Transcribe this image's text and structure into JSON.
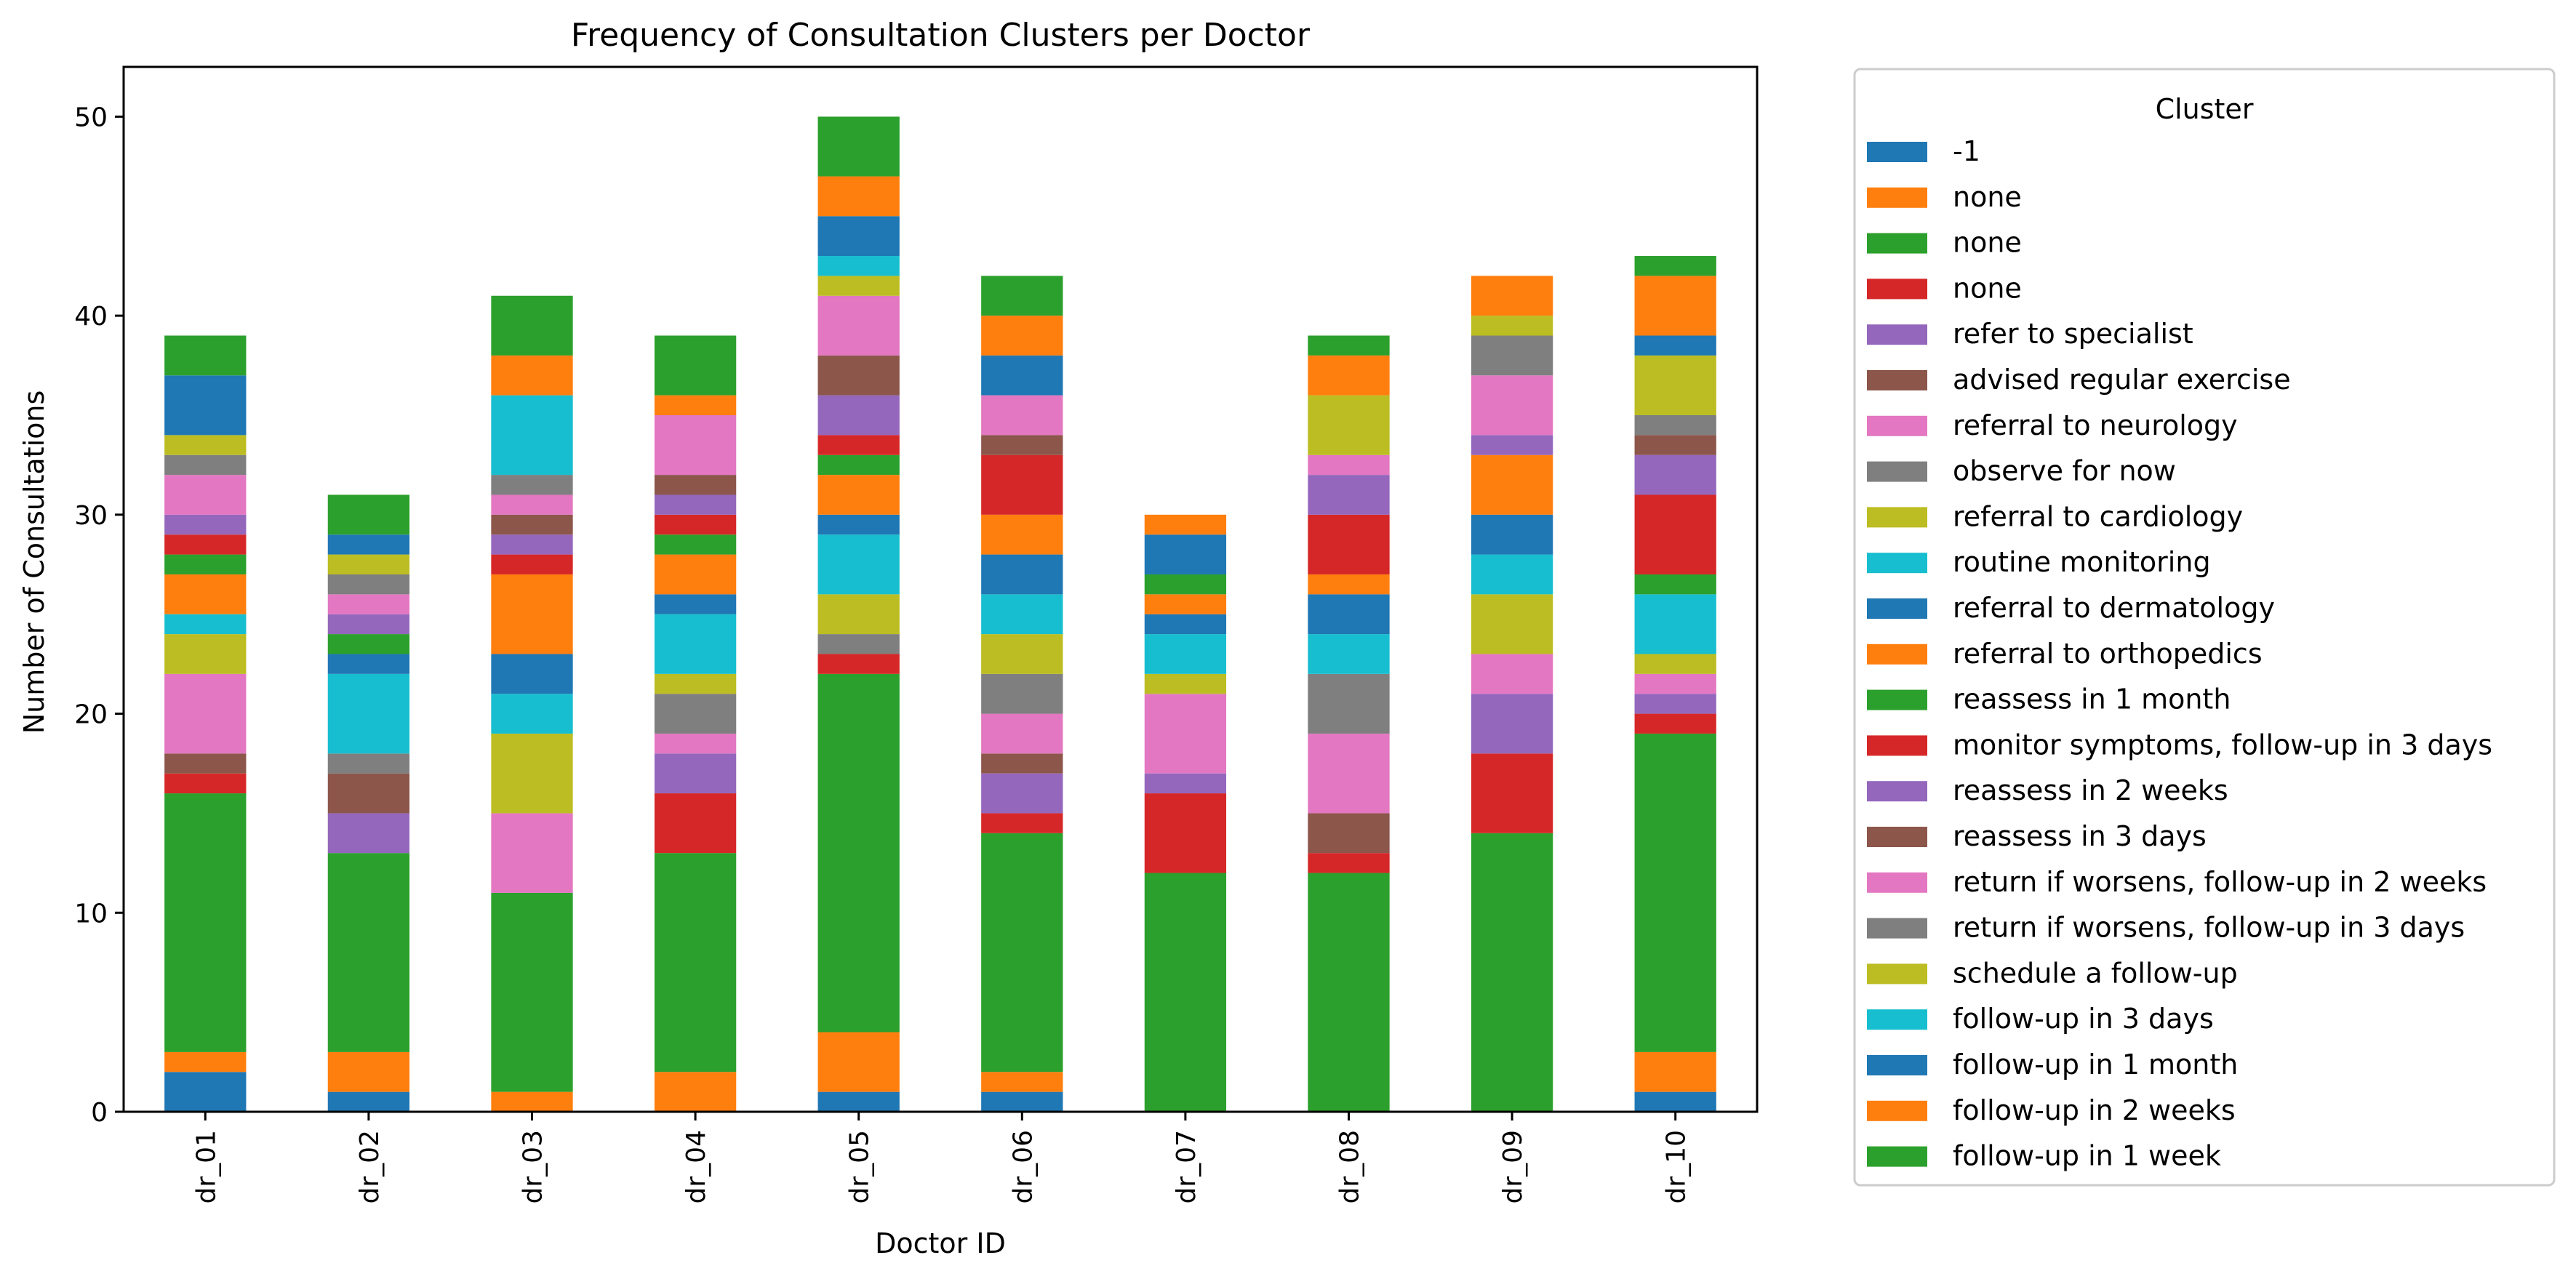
{
  "chart_data": {
    "type": "bar",
    "stacked": true,
    "title": "Frequency of Consultation Clusters per Doctor",
    "xlabel": "Doctor ID",
    "ylabel": "Number of Consultations",
    "ylim": [
      0,
      52.5
    ],
    "yticks": [
      0,
      10,
      20,
      30,
      40,
      50
    ],
    "grid": false,
    "legend_title": "Cluster",
    "legend_position": "outside-right",
    "categories": [
      "dr_01",
      "dr_02",
      "dr_03",
      "dr_04",
      "dr_05",
      "dr_06",
      "dr_07",
      "dr_08",
      "dr_09",
      "dr_10"
    ],
    "series": [
      {
        "name": "-1",
        "color": "#1f77b4",
        "values": [
          2,
          1,
          0,
          0,
          1,
          1,
          0,
          0,
          0,
          1
        ]
      },
      {
        "name": "none",
        "color": "#ff7f0e",
        "values": [
          1,
          2,
          1,
          2,
          3,
          1,
          0,
          0,
          0,
          2
        ]
      },
      {
        "name": "none",
        "color": "#2ca02c",
        "values": [
          13,
          10,
          10,
          11,
          18,
          12,
          12,
          12,
          14,
          16
        ]
      },
      {
        "name": "none",
        "color": "#d62728",
        "values": [
          1,
          0,
          0,
          3,
          1,
          1,
          4,
          1,
          4,
          1
        ]
      },
      {
        "name": "refer to specialist",
        "color": "#9467bd",
        "values": [
          0,
          2,
          0,
          2,
          0,
          2,
          1,
          0,
          3,
          1
        ]
      },
      {
        "name": "advised regular exercise",
        "color": "#8c564b",
        "values": [
          1,
          2,
          0,
          0,
          0,
          1,
          0,
          2,
          0,
          0
        ]
      },
      {
        "name": "referral to neurology",
        "color": "#e377c2",
        "values": [
          4,
          0,
          4,
          1,
          0,
          2,
          4,
          4,
          2,
          1
        ]
      },
      {
        "name": "observe for now",
        "color": "#7f7f7f",
        "values": [
          0,
          1,
          0,
          2,
          1,
          2,
          0,
          3,
          0,
          0
        ]
      },
      {
        "name": "referral to cardiology",
        "color": "#bcbd22",
        "values": [
          2,
          0,
          4,
          1,
          2,
          2,
          1,
          0,
          3,
          1
        ]
      },
      {
        "name": "routine monitoring",
        "color": "#17becf",
        "values": [
          1,
          4,
          2,
          3,
          3,
          2,
          2,
          2,
          2,
          3
        ]
      },
      {
        "name": "referral to dermatology",
        "color": "#1f77b4",
        "values": [
          0,
          1,
          2,
          1,
          1,
          2,
          1,
          2,
          2,
          0
        ]
      },
      {
        "name": "referral to orthopedics",
        "color": "#ff7f0e",
        "values": [
          2,
          0,
          4,
          2,
          2,
          2,
          1,
          1,
          3,
          0
        ]
      },
      {
        "name": "reassess in 1 month",
        "color": "#2ca02c",
        "values": [
          1,
          1,
          0,
          1,
          1,
          0,
          1,
          0,
          0,
          1
        ]
      },
      {
        "name": "monitor symptoms, follow-up in 3 days",
        "color": "#d62728",
        "values": [
          1,
          0,
          1,
          1,
          1,
          3,
          0,
          3,
          0,
          4
        ]
      },
      {
        "name": "reassess in 2 weeks",
        "color": "#9467bd",
        "values": [
          1,
          1,
          1,
          1,
          2,
          0,
          0,
          2,
          1,
          2
        ]
      },
      {
        "name": "reassess in 3 days",
        "color": "#8c564b",
        "values": [
          0,
          0,
          1,
          1,
          2,
          1,
          0,
          0,
          0,
          1
        ]
      },
      {
        "name": "return if worsens, follow-up in 2 weeks",
        "color": "#e377c2",
        "values": [
          2,
          1,
          1,
          3,
          3,
          2,
          0,
          1,
          3,
          0
        ]
      },
      {
        "name": "return if worsens, follow-up in 3 days",
        "color": "#7f7f7f",
        "values": [
          1,
          1,
          1,
          0,
          0,
          0,
          0,
          0,
          2,
          1
        ]
      },
      {
        "name": "schedule a follow-up",
        "color": "#bcbd22",
        "values": [
          1,
          1,
          0,
          0,
          1,
          0,
          0,
          3,
          1,
          3
        ]
      },
      {
        "name": "follow-up in 3 days",
        "color": "#17becf",
        "values": [
          0,
          0,
          4,
          0,
          1,
          0,
          0,
          0,
          0,
          0
        ]
      },
      {
        "name": "follow-up in 1 month",
        "color": "#1f77b4",
        "values": [
          3,
          1,
          0,
          0,
          2,
          2,
          2,
          0,
          0,
          1
        ]
      },
      {
        "name": "follow-up in 2 weeks",
        "color": "#ff7f0e",
        "values": [
          0,
          0,
          2,
          1,
          2,
          2,
          1,
          2,
          2,
          3
        ]
      },
      {
        "name": "follow-up in 1 week",
        "color": "#2ca02c",
        "values": [
          2,
          2,
          3,
          3,
          3,
          2,
          0,
          1,
          0,
          1
        ]
      }
    ]
  }
}
